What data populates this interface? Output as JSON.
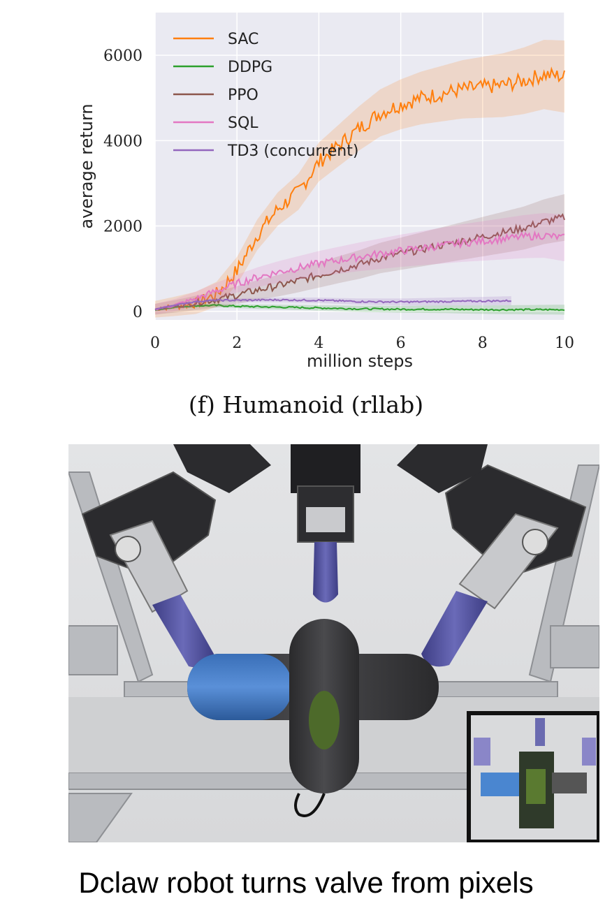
{
  "chart_data": {
    "type": "line",
    "title": "",
    "subtitle": "",
    "xlabel": "million steps",
    "ylabel": "average return",
    "xlim": [
      0,
      10
    ],
    "ylim": [
      -200,
      7000
    ],
    "xticks": [
      0,
      2,
      4,
      6,
      8,
      10
    ],
    "yticks": [
      0,
      2000,
      4000,
      6000
    ],
    "grid": true,
    "legend_position": "top-left",
    "series": [
      {
        "name": "SAC",
        "color": "#ff7f0e",
        "x": [
          0,
          0.5,
          1,
          1.5,
          2,
          2.5,
          3,
          3.5,
          4,
          4.5,
          5,
          5.5,
          6,
          6.5,
          7,
          7.5,
          8,
          8.5,
          9,
          9.5,
          10
        ],
        "y": [
          50,
          120,
          200,
          400,
          950,
          1800,
          2400,
          2800,
          3500,
          3900,
          4300,
          4650,
          4850,
          5000,
          5100,
          5200,
          5250,
          5300,
          5400,
          5550,
          5500
        ]
      },
      {
        "name": "DDPG",
        "color": "#2ca02c",
        "x": [
          0,
          0.5,
          1,
          1.5,
          2,
          3,
          4,
          5,
          6,
          7,
          8,
          9,
          10
        ],
        "y": [
          30,
          100,
          130,
          140,
          120,
          100,
          80,
          60,
          50,
          50,
          40,
          40,
          40
        ]
      },
      {
        "name": "PPO",
        "color": "#8c564b",
        "x": [
          0,
          0.5,
          1,
          1.5,
          2,
          2.5,
          3,
          3.5,
          4,
          4.5,
          5,
          5.5,
          6,
          6.5,
          7,
          7.5,
          8,
          8.5,
          9,
          9.5,
          10
        ],
        "y": [
          50,
          120,
          200,
          280,
          380,
          500,
          600,
          720,
          850,
          980,
          1100,
          1250,
          1350,
          1450,
          1550,
          1650,
          1750,
          1850,
          1950,
          2100,
          2200
        ]
      },
      {
        "name": "SQL",
        "color": "#e377c2",
        "x": [
          0,
          0.5,
          1,
          1.5,
          2,
          2.5,
          3,
          3.5,
          4,
          4.5,
          5,
          5.5,
          6,
          6.5,
          7,
          7.5,
          8,
          8.5,
          9,
          9.5,
          10
        ],
        "y": [
          50,
          150,
          300,
          480,
          650,
          800,
          920,
          1020,
          1120,
          1200,
          1280,
          1350,
          1420,
          1480,
          1540,
          1600,
          1650,
          1700,
          1750,
          1780,
          1720
        ]
      },
      {
        "name": "TD3 (concurrent)",
        "color": "#9467bd",
        "x": [
          0,
          0.5,
          1,
          1.5,
          2,
          3,
          4,
          5,
          6,
          7,
          8,
          8.7
        ],
        "y": [
          50,
          150,
          230,
          260,
          260,
          270,
          260,
          230,
          220,
          230,
          240,
          250
        ]
      }
    ]
  },
  "caption": "(f) Humanoid (rllab)",
  "bottom_caption": "Dclaw robot turns valve from pixels"
}
